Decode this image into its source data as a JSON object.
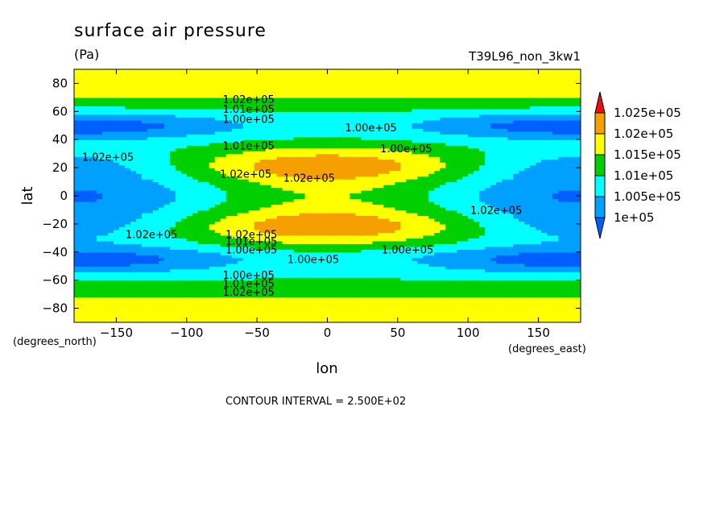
{
  "chart_data": {
    "type": "heatmap",
    "title": "surface air pressure",
    "units": "(Pa)",
    "run_label": "T39L96_non_3kw1",
    "xlabel": "lon",
    "ylabel": "lat",
    "x_units": "(degrees_east)",
    "y_units": "(degrees_north)",
    "xlim": [
      -180,
      180
    ],
    "ylim": [
      -90,
      90
    ],
    "x_ticks": [
      -150,
      -100,
      -50,
      0,
      50,
      100,
      150
    ],
    "y_ticks": [
      -80,
      -60,
      -40,
      -20,
      0,
      20,
      40,
      60,
      80
    ],
    "x_tick_labels": [
      "−150",
      "−100",
      "−50",
      "0",
      "50",
      "100",
      "150"
    ],
    "y_tick_labels": [
      "−80",
      "−60",
      "−40",
      "−20",
      "0",
      "20",
      "40",
      "60",
      "80"
    ],
    "contour_interval_text": "CONTOUR INTERVAL = 2.500E+02",
    "colorbar": {
      "labels": [
        "1.025e+05",
        "1.02e+05",
        "1.015e+05",
        "1.01e+05",
        "1.005e+05",
        "1e+05"
      ],
      "bands": [
        {
          "min": 102500,
          "color": "#ee1010"
        },
        {
          "min": 102000,
          "max": 102500,
          "color": "#f5a000"
        },
        {
          "min": 101500,
          "max": 102000,
          "color": "#ffff00"
        },
        {
          "min": 101000,
          "max": 101500,
          "color": "#00d000"
        },
        {
          "min": 100500,
          "max": 101000,
          "color": "#00ffff"
        },
        {
          "min": 100000,
          "max": 100500,
          "color": "#00a0ff"
        },
        {
          "max": 100000,
          "color": "#0060ff"
        }
      ]
    },
    "contour_labels": [
      {
        "text": "1.02e+05",
        "lon": -56,
        "lat": 68
      },
      {
        "text": "1.01e+05",
        "lon": -56,
        "lat": 61
      },
      {
        "text": "1.00e+05",
        "lon": -56,
        "lat": 54
      },
      {
        "text": "1.00e+05",
        "lon": 31,
        "lat": 48
      },
      {
        "text": "1.00e+05",
        "lon": 56,
        "lat": 33
      },
      {
        "text": "1.01e+05",
        "lon": -56,
        "lat": 35
      },
      {
        "text": "1.02e+05",
        "lon": -156,
        "lat": 27
      },
      {
        "text": "1.02e+05",
        "lon": -58,
        "lat": 15
      },
      {
        "text": "1.02e+05",
        "lon": -13,
        "lat": 12
      },
      {
        "text": "1.02e+05",
        "lon": 120,
        "lat": -11
      },
      {
        "text": "1.02e+05",
        "lon": -125,
        "lat": -28
      },
      {
        "text": "1.02e+05",
        "lon": -54,
        "lat": -28
      },
      {
        "text": "1.01e+05",
        "lon": -54,
        "lat": -33
      },
      {
        "text": "1.00e+05",
        "lon": -54,
        "lat": -39
      },
      {
        "text": "1.00e+05",
        "lon": 57,
        "lat": -39
      },
      {
        "text": "1.00e+05",
        "lon": -10,
        "lat": -46
      },
      {
        "text": "1.00e+05",
        "lon": -56,
        "lat": -57
      },
      {
        "text": "1.01e+05",
        "lon": -56,
        "lat": -63
      },
      {
        "text": "1.02e+05",
        "lon": -56,
        "lat": -69
      }
    ]
  }
}
